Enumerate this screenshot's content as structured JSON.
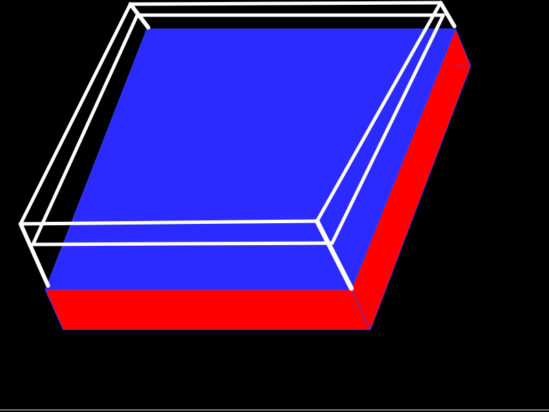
{
  "scene": {
    "background_color": "#000000",
    "slab": {
      "top_face_color": "#2b2bff",
      "side_face_color": "#ff0000",
      "outline_color": "#3a3aff"
    },
    "wireframe": {
      "color": "#ffffff",
      "selected": true
    },
    "floor_line_color": "#ffffff"
  }
}
